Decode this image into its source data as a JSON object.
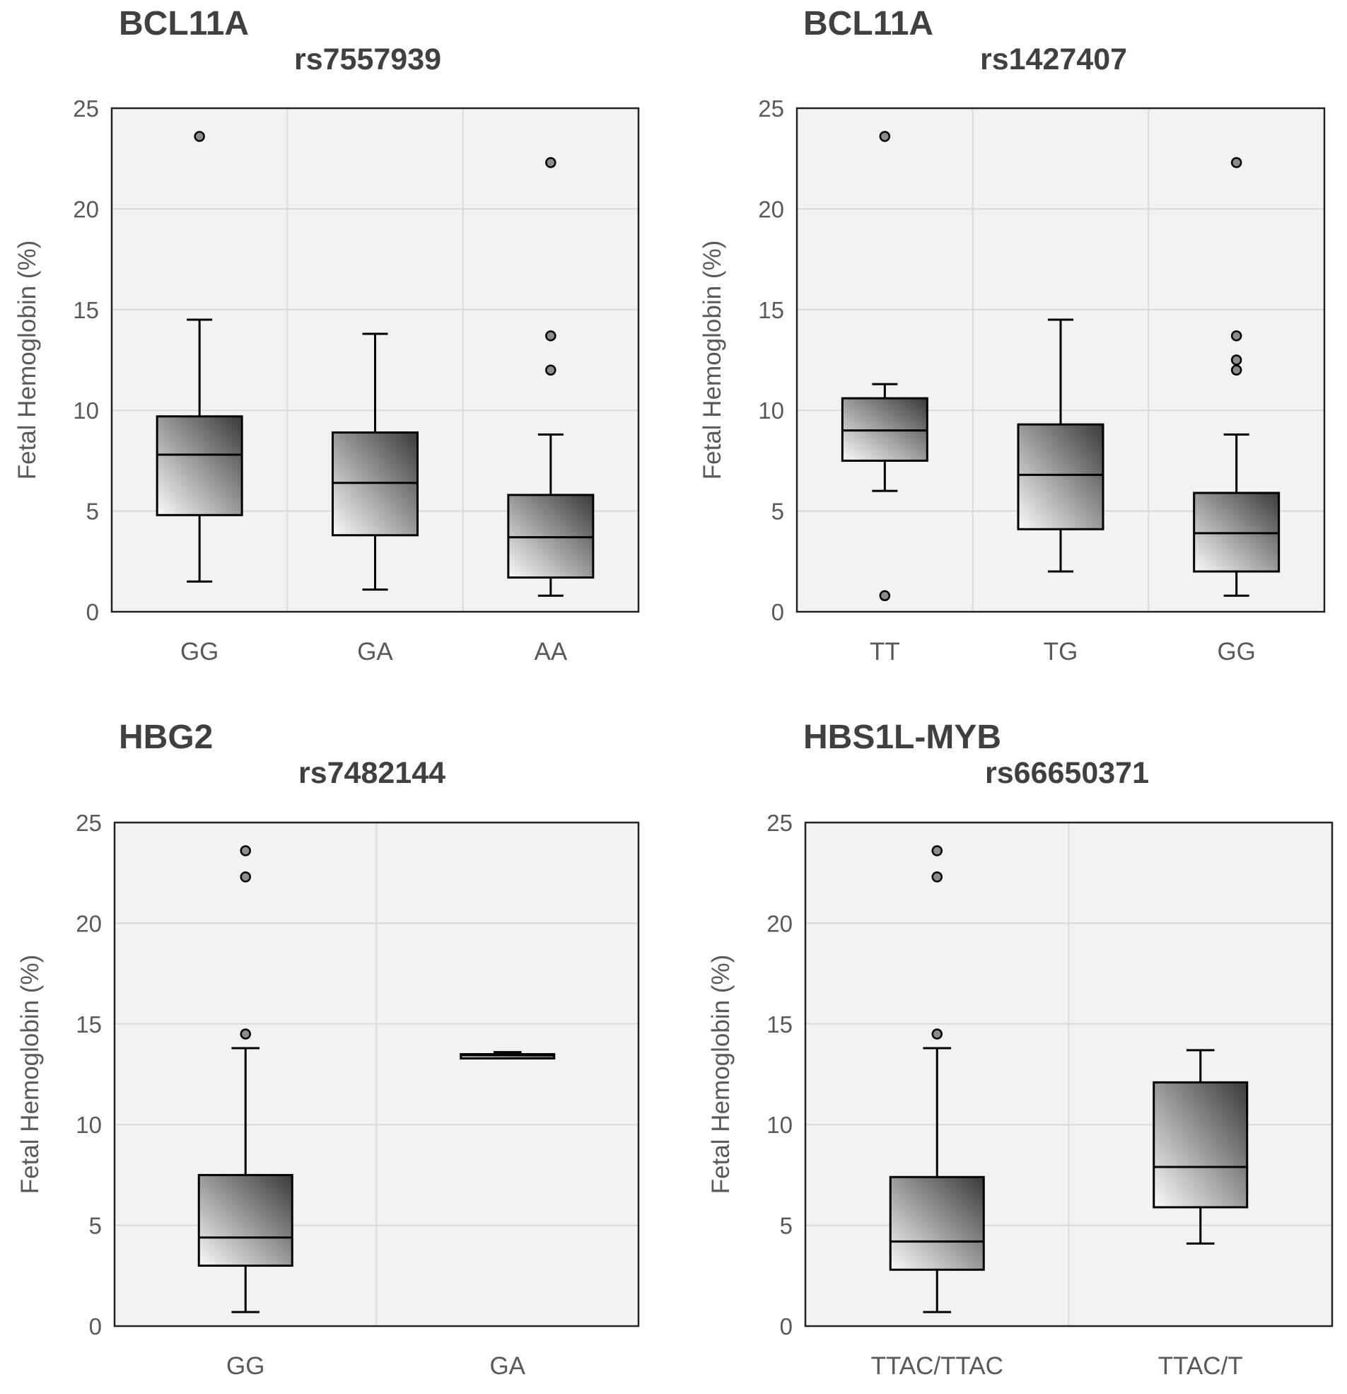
{
  "colors": {
    "plot_background": "#f2f2f2",
    "gridline": "#d9d9d9",
    "axis_text": "#595959",
    "title_text": "#404040",
    "box_gradient_light": "#fafafa",
    "box_gradient_dark": "#3a3a3a",
    "outlier_fill": "#8c8c8c"
  },
  "chart_data": [
    {
      "type": "box",
      "gene": "BCL11A",
      "title": "rs7557939",
      "ylabel": "Fetal Hemoglobin (%)",
      "xlabel": "",
      "ylim": [
        0,
        25
      ],
      "yticks": [
        0,
        5,
        10,
        15,
        20,
        25
      ],
      "grid": true,
      "categories": [
        "GG",
        "GA",
        "AA"
      ],
      "boxes": [
        {
          "category": "GG",
          "whisker_low": 1.5,
          "q1": 4.8,
          "median": 7.8,
          "q3": 9.7,
          "whisker_high": 14.5,
          "outliers": [
            23.6
          ]
        },
        {
          "category": "GA",
          "whisker_low": 1.1,
          "q1": 3.8,
          "median": 6.4,
          "q3": 8.9,
          "whisker_high": 13.8,
          "outliers": []
        },
        {
          "category": "AA",
          "whisker_low": 0.8,
          "q1": 1.7,
          "median": 3.7,
          "q3": 5.8,
          "whisker_high": 8.8,
          "outliers": [
            12.0,
            13.7,
            22.3
          ]
        }
      ]
    },
    {
      "type": "box",
      "gene": "BCL11A",
      "title": "rs1427407",
      "ylabel": "Fetal Hemoglobin (%)",
      "xlabel": "",
      "ylim": [
        0,
        25
      ],
      "yticks": [
        0,
        5,
        10,
        15,
        20,
        25
      ],
      "grid": true,
      "categories": [
        "TT",
        "TG",
        "GG"
      ],
      "boxes": [
        {
          "category": "TT",
          "whisker_low": 6.0,
          "q1": 7.5,
          "median": 9.0,
          "q3": 10.6,
          "whisker_high": 11.3,
          "outliers": [
            0.8,
            23.6
          ]
        },
        {
          "category": "TG",
          "whisker_low": 2.0,
          "q1": 4.1,
          "median": 6.8,
          "q3": 9.3,
          "whisker_high": 14.5,
          "outliers": []
        },
        {
          "category": "GG",
          "whisker_low": 0.8,
          "q1": 2.0,
          "median": 3.9,
          "q3": 5.9,
          "whisker_high": 8.8,
          "outliers": [
            12.0,
            12.5,
            13.7,
            22.3
          ]
        }
      ]
    },
    {
      "type": "box",
      "gene": "HBG2",
      "title": "rs7482144",
      "ylabel": "Fetal Hemoglobin (%)",
      "xlabel": "",
      "ylim": [
        0,
        25
      ],
      "yticks": [
        0,
        5,
        10,
        15,
        20,
        25
      ],
      "grid": true,
      "categories": [
        "GG",
        "GA"
      ],
      "boxes": [
        {
          "category": "GG",
          "whisker_low": 0.7,
          "q1": 3.0,
          "median": 4.4,
          "q3": 7.5,
          "whisker_high": 13.8,
          "outliers": [
            14.5,
            22.3,
            23.6
          ]
        },
        {
          "category": "GA",
          "whisker_low": 13.3,
          "q1": 13.4,
          "median": 13.45,
          "q3": 13.5,
          "whisker_high": 13.6,
          "outliers": []
        }
      ]
    },
    {
      "type": "box",
      "gene": "HBS1L-MYB",
      "title": "rs66650371",
      "ylabel": "Fetal Hemoglobin (%)",
      "xlabel": "",
      "ylim": [
        0,
        25
      ],
      "yticks": [
        0,
        5,
        10,
        15,
        20,
        25
      ],
      "grid": true,
      "categories": [
        "TTAC/TTAC",
        "TTAC/T"
      ],
      "boxes": [
        {
          "category": "TTAC/TTAC",
          "whisker_low": 0.7,
          "q1": 2.8,
          "median": 4.2,
          "q3": 7.4,
          "whisker_high": 13.8,
          "outliers": [
            14.5,
            22.3,
            23.6
          ]
        },
        {
          "category": "TTAC/T",
          "whisker_low": 4.1,
          "q1": 5.9,
          "median": 7.9,
          "q3": 12.1,
          "whisker_high": 13.7,
          "outliers": []
        }
      ]
    }
  ]
}
